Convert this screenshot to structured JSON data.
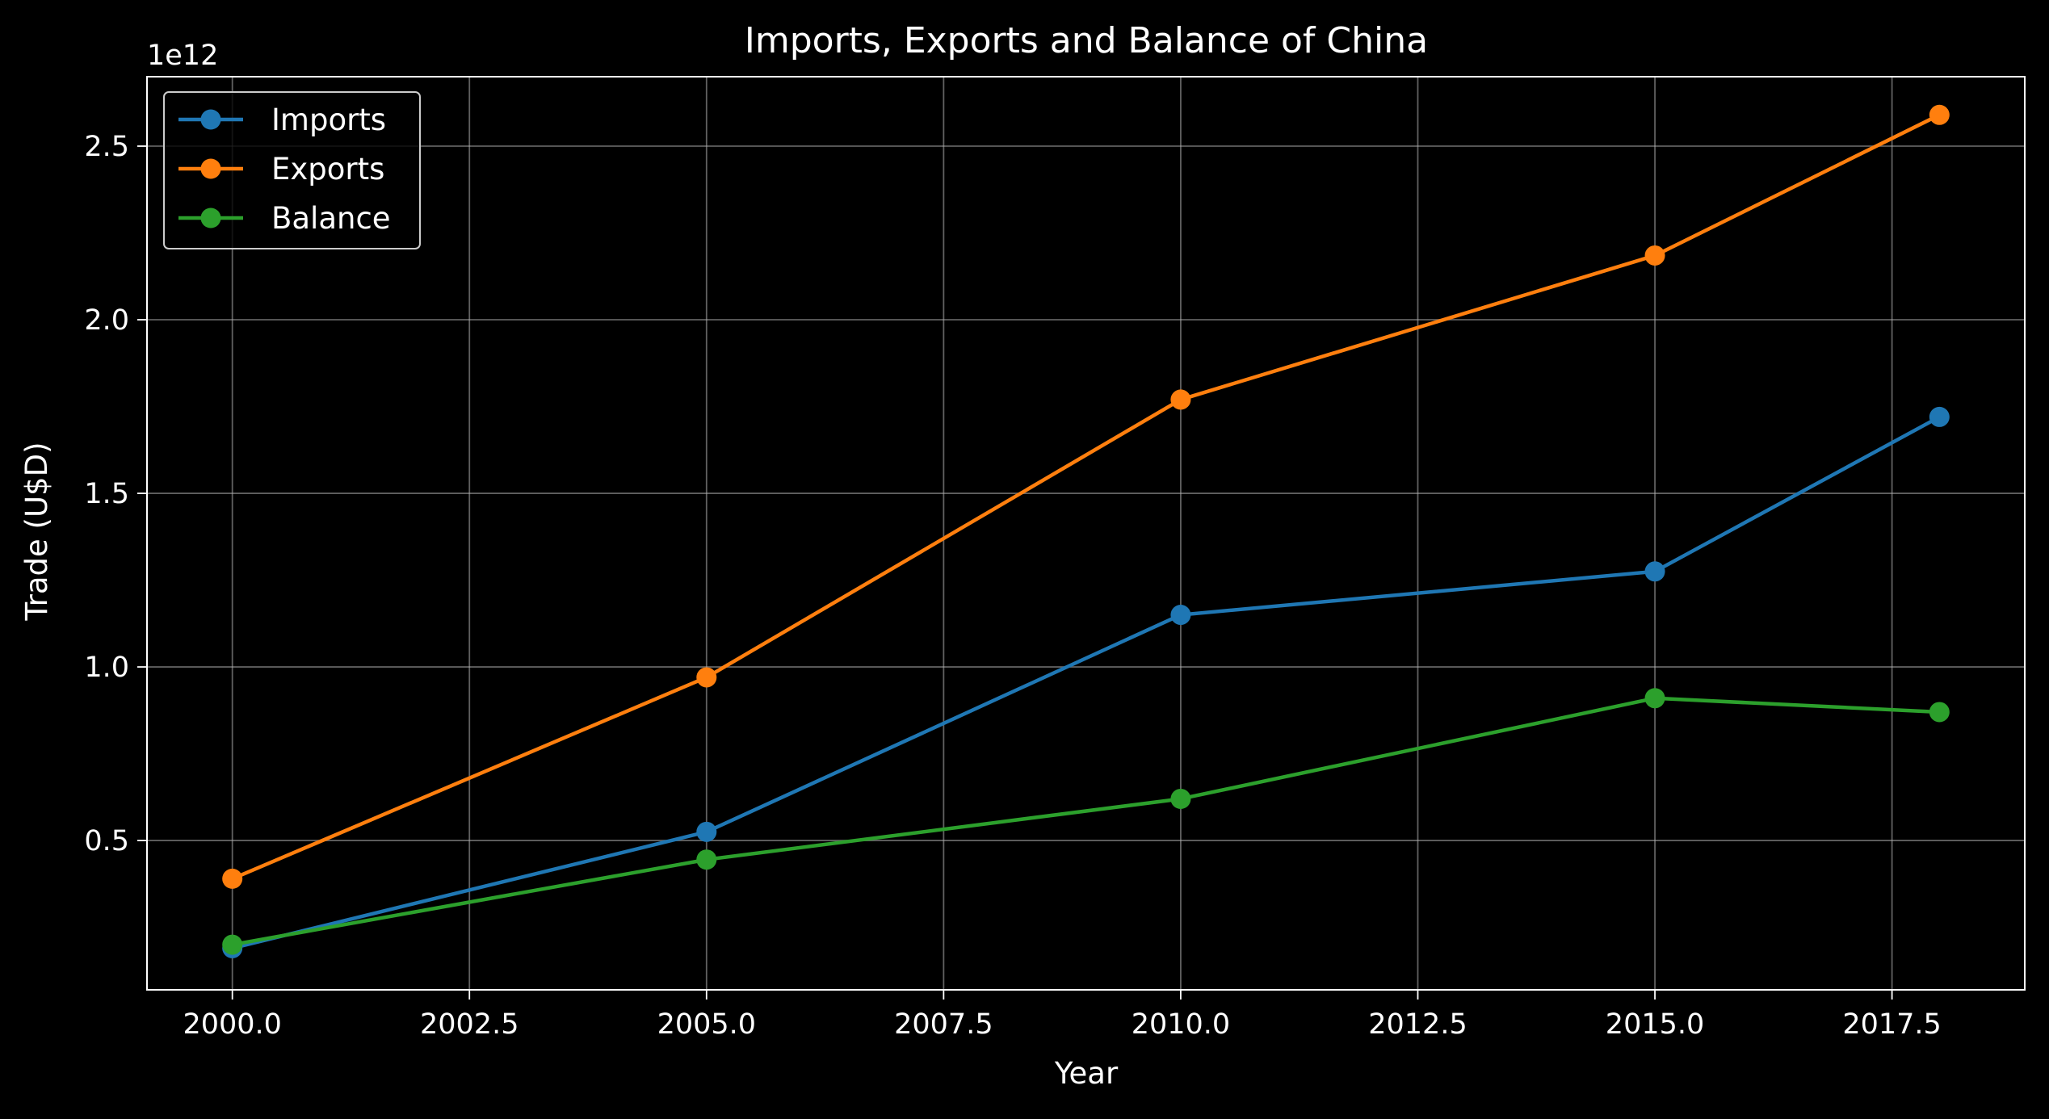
{
  "chart_data": {
    "type": "line",
    "title": "Imports, Exports and Balance of China",
    "xlabel": "Year",
    "ylabel": "Trade (U$D)",
    "y_offset_text": "1e12",
    "x": [
      2000,
      2005,
      2010,
      2015,
      2018
    ],
    "xlim": [
      1999.1,
      2018.9
    ],
    "ylim": [
      0.07,
      2.7
    ],
    "y_scale_factor": 1000000000000.0,
    "x_ticks": [
      2000.0,
      2002.5,
      2005.0,
      2007.5,
      2010.0,
      2012.5,
      2015.0,
      2017.5
    ],
    "x_tick_labels": [
      "2000.0",
      "2002.5",
      "2005.0",
      "2007.5",
      "2010.0",
      "2012.5",
      "2015.0",
      "2017.5"
    ],
    "y_ticks": [
      0.5,
      1.0,
      1.5,
      2.0,
      2.5
    ],
    "y_tick_labels": [
      "0.5",
      "1.0",
      "1.5",
      "2.0",
      "2.5"
    ],
    "grid": true,
    "legend_position": "top-left",
    "series": [
      {
        "name": "Imports",
        "color": "#1f77b4",
        "values": [
          0.19,
          0.525,
          1.15,
          1.275,
          1.72
        ]
      },
      {
        "name": "Exports",
        "color": "#ff7f0e",
        "values": [
          0.39,
          0.97,
          1.77,
          2.185,
          2.59
        ]
      },
      {
        "name": "Balance",
        "color": "#2ca02c",
        "values": [
          0.2,
          0.445,
          0.62,
          0.91,
          0.87
        ]
      }
    ]
  }
}
